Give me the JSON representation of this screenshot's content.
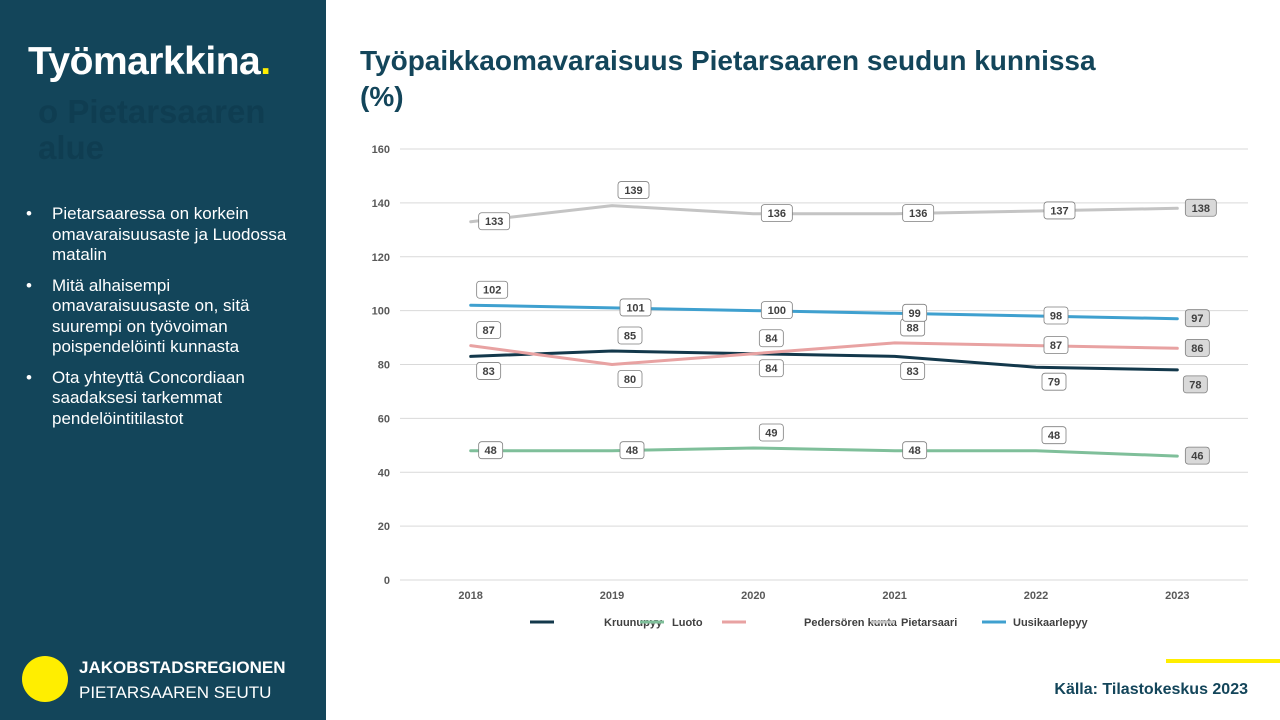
{
  "sidebar": {
    "title": "Työmarkkina",
    "title_dot": ".",
    "ghost_text": "o Pietarsaaren alue",
    "bullet_symbol": "•",
    "bullets": [
      "Pietarsaaressa on korkein omavaraisuusaste ja Luodossa matalin",
      "Mitä alhaisempi omavaraisuusaste on, sitä suurempi on työvoiman poispendelöinti kunnasta",
      "Ota yhteyttä Concordiaan saadaksesi tarkemmat pendelöintitilastot"
    ],
    "org_name_1": "JAKOBSTADSREGIONEN",
    "org_name_2": "PIETARSAAREN SEUTU"
  },
  "colors": {
    "sidebar_bg": "#13455a",
    "accent_yellow": "#ffee00",
    "title_color": "#13455a"
  },
  "chart_title": "Työpaikkaomavaraisuus Pietarsaaren seudun kunnissa (%)",
  "source": "Källa: Tilastokeskus 2023",
  "chart_data": {
    "type": "line",
    "categories": [
      "2018",
      "2019",
      "2020",
      "2021",
      "2022",
      "2023"
    ],
    "ylim": [
      0,
      160
    ],
    "yticks": [
      0,
      20,
      40,
      60,
      80,
      100,
      120,
      140,
      160
    ],
    "grid": true,
    "legend_position": "bottom",
    "series": [
      {
        "name": "Kruunupyy",
        "color": "#13384b",
        "values": [
          83,
          85,
          84,
          83,
          79,
          78
        ],
        "label_pos": [
          "below",
          "above",
          "below",
          "below",
          "below",
          "below"
        ]
      },
      {
        "name": "Luoto",
        "color": "#7fbf9a",
        "values": [
          48,
          48,
          49,
          48,
          48,
          46
        ],
        "label_pos": [
          "right",
          "right",
          "above",
          "right",
          "above",
          "right"
        ]
      },
      {
        "name": "Pedersören kunta",
        "color": "#e8a2a2",
        "values": [
          87,
          80,
          84,
          88,
          87,
          86
        ],
        "label_pos": [
          "above",
          "below",
          "above",
          "above",
          "right",
          "right"
        ]
      },
      {
        "name": "Pietarsaari",
        "color": "#c4c4c4",
        "values": [
          133,
          139,
          136,
          136,
          137,
          138
        ],
        "label_pos": [
          "right",
          "above",
          "right",
          "right",
          "right",
          "right"
        ]
      },
      {
        "name": "Uusikaarlepyy",
        "color": "#3fa0cf",
        "values": [
          102,
          101,
          100,
          99,
          98,
          97
        ],
        "label_pos": [
          "above",
          "right",
          "right",
          "right",
          "right",
          "right"
        ]
      }
    ]
  }
}
